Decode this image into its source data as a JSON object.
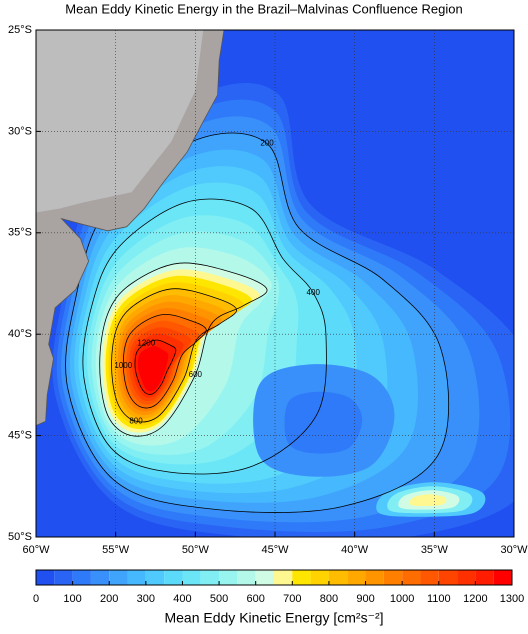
{
  "chart_data": {
    "type": "map",
    "title": "Mean Eddy Kinetic Energy in the Brazil–Malvinas Confluence Region",
    "xlim": [
      -60,
      -30
    ],
    "ylim": [
      -50,
      -25
    ],
    "xticks": [
      {
        "value": -60,
        "label": "60°W"
      },
      {
        "value": -55,
        "label": "55°W"
      },
      {
        "value": -50,
        "label": "50°W"
      },
      {
        "value": -45,
        "label": "45°W"
      },
      {
        "value": -40,
        "label": "40°W"
      },
      {
        "value": -35,
        "label": "35°W"
      },
      {
        "value": -30,
        "label": "30°W"
      }
    ],
    "yticks": [
      {
        "value": -25,
        "label": "25°S"
      },
      {
        "value": -30,
        "label": "30°S"
      },
      {
        "value": -35,
        "label": "35°S"
      },
      {
        "value": -40,
        "label": "40°S"
      },
      {
        "value": -45,
        "label": "45°S"
      },
      {
        "value": -50,
        "label": "50°S"
      }
    ],
    "grid": true,
    "contour_levels": [
      200,
      400,
      600,
      800,
      1000,
      1200
    ],
    "colorbar": {
      "label": "Mean Eddy Kinetic Energy [cm²s⁻²]",
      "lim": [
        0,
        1300
      ],
      "ticks": [
        0,
        100,
        200,
        300,
        400,
        500,
        600,
        700,
        800,
        900,
        1000,
        1100,
        1200,
        1300
      ],
      "boundaries": [
        0,
        50,
        100,
        150,
        200,
        250,
        300,
        350,
        400,
        450,
        500,
        550,
        600,
        650,
        700,
        750,
        800,
        850,
        900,
        950,
        1000,
        1050,
        1100,
        1150,
        1200,
        1250,
        1300
      ],
      "colors": [
        "#2050f0",
        "#2a64f5",
        "#2f7af8",
        "#3a90fb",
        "#40a4fd",
        "#46b8fd",
        "#50cafc",
        "#5cdafa",
        "#6ae6f7",
        "#80eef3",
        "#98f4ef",
        "#b4f8ea",
        "#d0fce6",
        "#fff890",
        "#ffe600",
        "#ffd200",
        "#ffbc00",
        "#ffa800",
        "#ff9400",
        "#ff8000",
        "#ff6c00",
        "#ff5800",
        "#ff4400",
        "#ff3000",
        "#ff1c00",
        "#ff0000"
      ]
    }
  }
}
